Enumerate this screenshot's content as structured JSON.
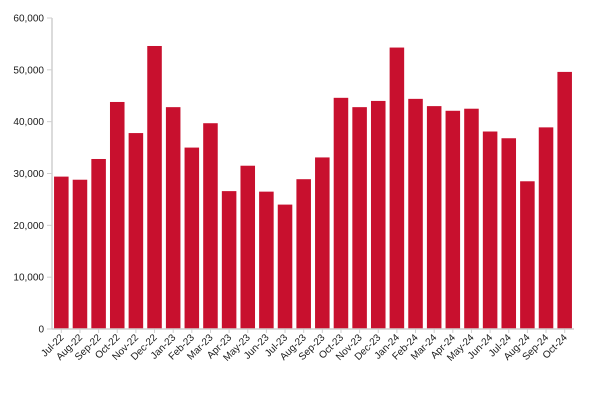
{
  "chart_data": {
    "type": "bar",
    "title": "",
    "xlabel": "",
    "ylabel": "",
    "ylim": [
      0,
      60000
    ],
    "yticks": [
      0,
      10000,
      20000,
      30000,
      40000,
      50000,
      60000
    ],
    "ytick_labels": [
      "0",
      "10,000",
      "20,000",
      "30,000",
      "40,000",
      "50,000",
      "60,000"
    ],
    "grid": false,
    "legend": "none",
    "bar_color": "#c8102e",
    "categories": [
      "Jul-22",
      "Aug-22",
      "Sep-22",
      "Oct-22",
      "Nov-22",
      "Dec-22",
      "Jan-23",
      "Feb-23",
      "Mar-23",
      "Apr-23",
      "May-23",
      "Jun-23",
      "Jul-23",
      "Aug-23",
      "Sep-23",
      "Oct-23",
      "Nov-23",
      "Dec-23",
      "Jan-24",
      "Feb-24",
      "Mar-24",
      "Apr-24",
      "May-24",
      "Jun-24",
      "Jul-24",
      "Aug-24",
      "Sep-24",
      "Oct-24"
    ],
    "values": [
      29400,
      28800,
      32800,
      43800,
      37800,
      54600,
      42800,
      35000,
      39700,
      26600,
      31500,
      26500,
      24000,
      28900,
      33100,
      44600,
      42800,
      44000,
      54300,
      44400,
      43000,
      42100,
      42500,
      38100,
      36800,
      28500,
      38900,
      49600
    ]
  }
}
